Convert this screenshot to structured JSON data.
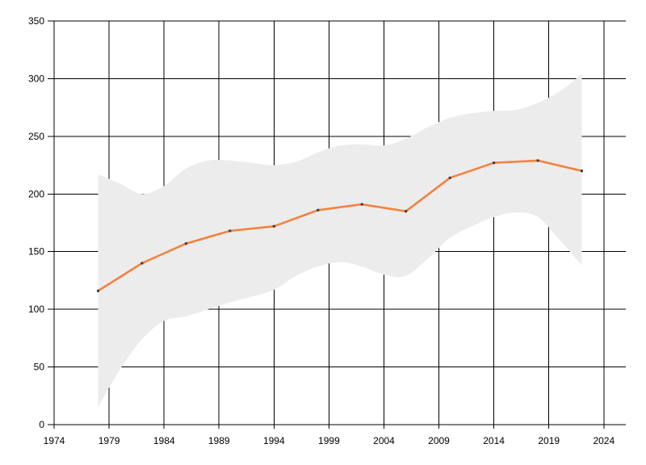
{
  "chart_data": {
    "type": "line",
    "x": [
      1978,
      1982,
      1986,
      1990,
      1994,
      1998,
      2002,
      2006,
      2010,
      2014,
      2018,
      2022
    ],
    "series": [
      {
        "name": "main-line",
        "values": [
          116,
          140,
          157,
          168,
          172,
          186,
          191,
          185,
          214,
          227,
          229,
          220
        ]
      }
    ],
    "band": {
      "x": [
        1978,
        1980,
        1982,
        1984,
        1986,
        1988,
        1990,
        1992,
        1994,
        1996,
        1998,
        2000,
        2002,
        2004,
        2006,
        2008,
        2010,
        2012,
        2014,
        2016,
        2018,
        2020,
        2022
      ],
      "upper": [
        217,
        209,
        200,
        207,
        222,
        229,
        229,
        227,
        225,
        228,
        236,
        242,
        243,
        242,
        248,
        258,
        266,
        270,
        272,
        273,
        279,
        289,
        304
      ],
      "lower": [
        15,
        48,
        74,
        90,
        94,
        100,
        106,
        111,
        117,
        129,
        137,
        141,
        137,
        130,
        129,
        144,
        162,
        172,
        180,
        184,
        180,
        160,
        138
      ]
    },
    "x_ticks": [
      "1974",
      "1979",
      "1984",
      "1989",
      "1994",
      "1999",
      "2004",
      "2009",
      "2014",
      "2019",
      "2024"
    ],
    "x_tick_values": [
      1974,
      1979,
      1984,
      1989,
      1994,
      1999,
      2004,
      2009,
      2014,
      2019,
      2024
    ],
    "y_ticks": [
      "0",
      "50",
      "100",
      "150",
      "200",
      "250",
      "300",
      "350"
    ],
    "y_tick_values": [
      0,
      50,
      100,
      150,
      200,
      250,
      300,
      350
    ],
    "xlim": [
      1974,
      2026
    ],
    "ylim": [
      0,
      350
    ],
    "grid": true,
    "legend": "none",
    "colors": {
      "line": "#f5813e",
      "marker": "#3d3d3d",
      "band": "#ececec",
      "grid": "#000000",
      "text": "#000000",
      "background": "#ffffff"
    }
  }
}
